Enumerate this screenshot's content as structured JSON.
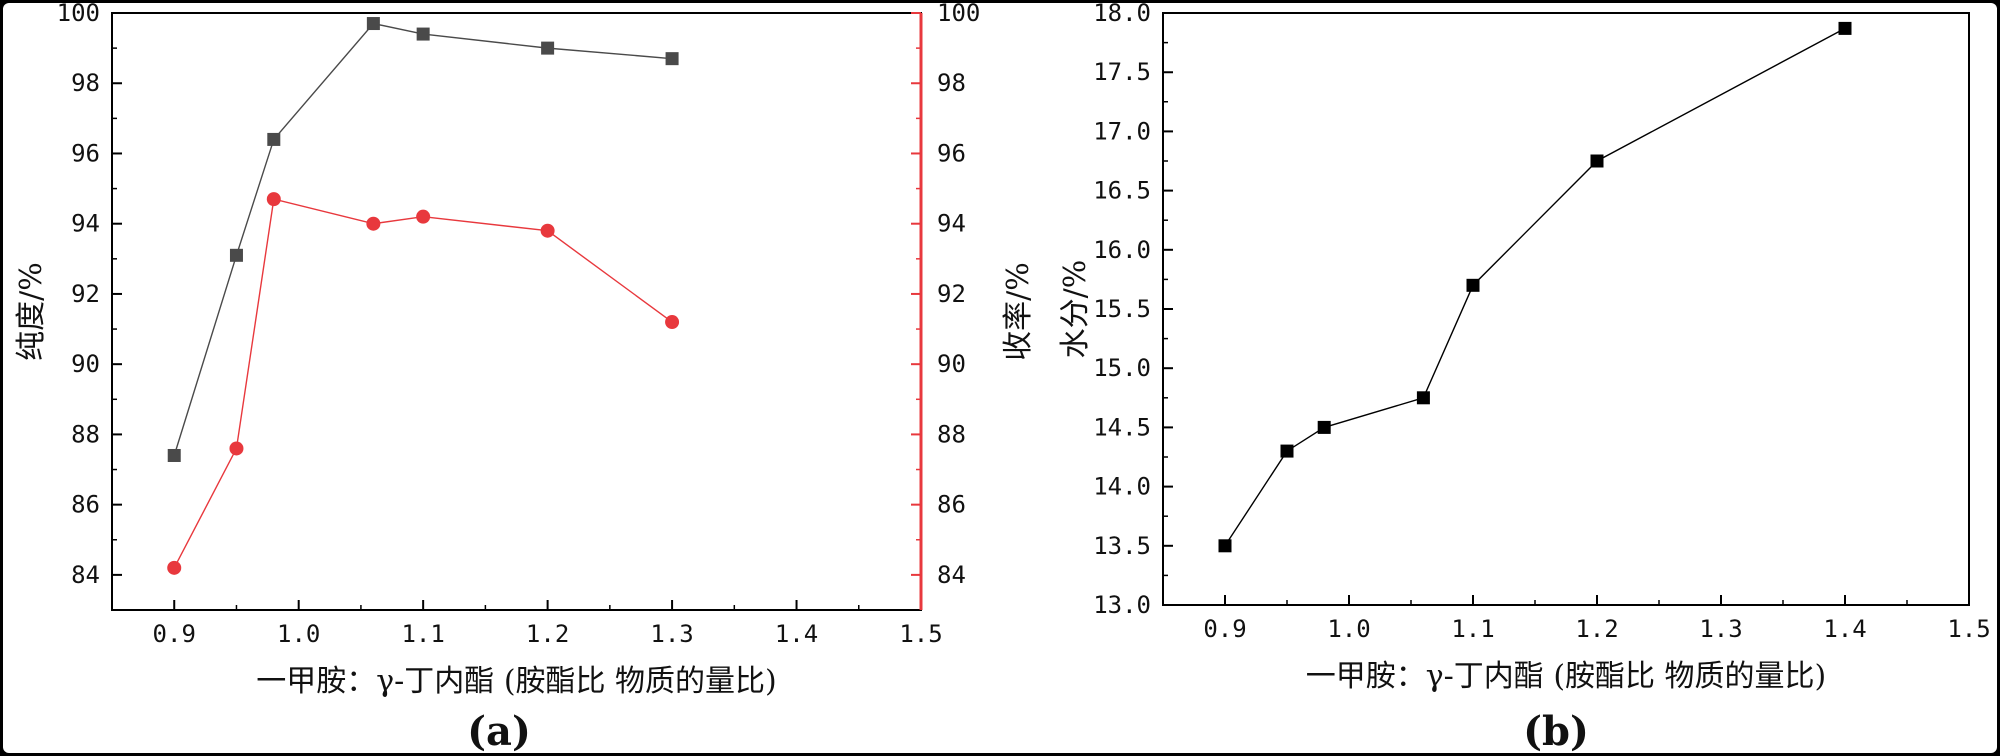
{
  "chart_data": [
    {
      "type": "line",
      "panel_label": "(a)",
      "xlabel": "一甲胺：γ-丁内酯 (胺酯比 物质的量比)",
      "ylabel_left": "纯度/%",
      "ylabel_right": "收率/%",
      "xlim": [
        0.85,
        1.5
      ],
      "ylim_left": [
        83,
        100
      ],
      "ylim_right": [
        83,
        100
      ],
      "x_ticks": [
        "0.9",
        "1.0",
        "1.1",
        "1.2",
        "1.3",
        "1.4",
        "1.5"
      ],
      "y_ticks_left": [
        "84",
        "86",
        "88",
        "90",
        "92",
        "94",
        "96",
        "98",
        "100"
      ],
      "y_ticks_right": [
        "84",
        "86",
        "88",
        "90",
        "92",
        "94",
        "96",
        "98",
        "100"
      ],
      "grid": false,
      "series": [
        {
          "axis": "left",
          "marker": "square",
          "color": "#4a4a4a",
          "x": [
            0.9,
            0.95,
            0.98,
            1.06,
            1.1,
            1.2,
            1.3
          ],
          "y": [
            87.4,
            93.1,
            96.4,
            99.7,
            99.4,
            99.0,
            98.7
          ]
        },
        {
          "axis": "right",
          "marker": "circle",
          "color": "#e8383d",
          "x": [
            0.9,
            0.95,
            0.98,
            1.06,
            1.1,
            1.2,
            1.3
          ],
          "y": [
            84.2,
            87.6,
            94.7,
            94.0,
            94.2,
            93.8,
            91.2
          ]
        }
      ]
    },
    {
      "type": "line",
      "panel_label": "(b)",
      "xlabel": "一甲胺：γ-丁内酯 (胺酯比 物质的量比)",
      "ylabel": "水分/%",
      "xlim": [
        0.85,
        1.5
      ],
      "ylim": [
        13.0,
        18.0
      ],
      "x_ticks": [
        "0.9",
        "1.0",
        "1.1",
        "1.2",
        "1.3",
        "1.4",
        "1.5"
      ],
      "y_ticks": [
        "13.0",
        "13.5",
        "14.0",
        "14.5",
        "15.0",
        "15.5",
        "16.0",
        "16.5",
        "17.0",
        "17.5",
        "18.0"
      ],
      "grid": false,
      "series": [
        {
          "marker": "square",
          "color": "#000000",
          "x": [
            0.9,
            0.95,
            0.98,
            1.06,
            1.1,
            1.2,
            1.4
          ],
          "y": [
            13.5,
            14.3,
            14.5,
            14.75,
            15.7,
            16.75,
            17.87
          ]
        }
      ]
    }
  ]
}
